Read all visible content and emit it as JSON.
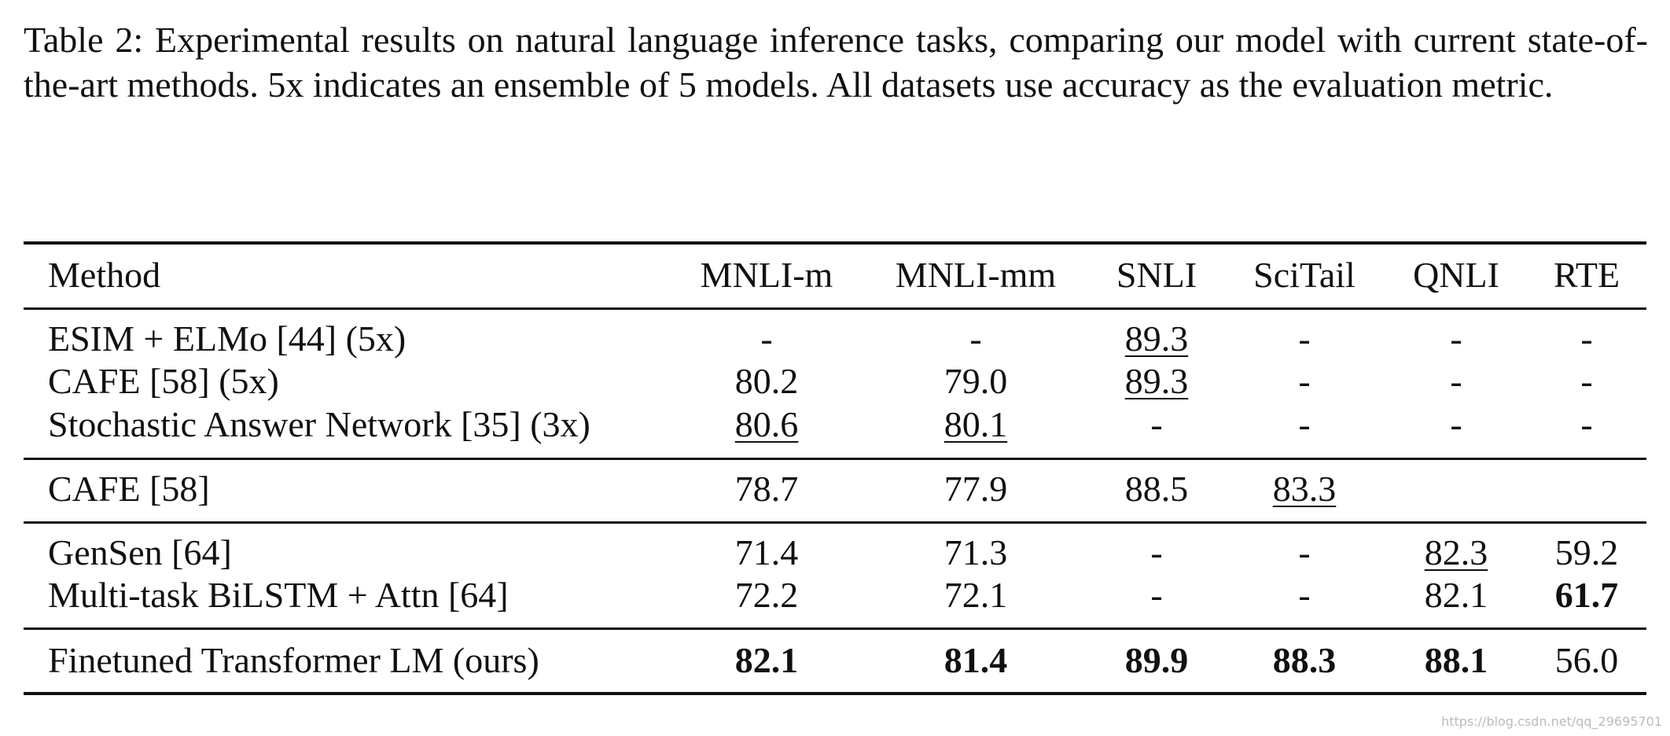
{
  "caption": "Table 2: Experimental results on natural language inference tasks, comparing our model with current state-of-the-art methods. 5x indicates an ensemble of 5 models. All datasets use accuracy as the evaluation metric.",
  "table": {
    "header": [
      "Method",
      "MNLI-m",
      "MNLI-mm",
      "SNLI",
      "SciTail",
      "QNLI",
      "RTE"
    ],
    "groups": [
      [
        [
          "ESIM + ELMo [44] (5x)",
          "-",
          "-",
          "89.3",
          "-",
          "-",
          "-"
        ],
        [
          "CAFE [58] (5x)",
          "80.2",
          "79.0",
          "89.3",
          "-",
          "-",
          "-"
        ],
        [
          "Stochastic Answer Network [35] (3x)",
          "80.6",
          "80.1",
          "-",
          "-",
          "-",
          "-"
        ]
      ],
      [
        [
          "CAFE [58]",
          "78.7",
          "77.9",
          "88.5",
          "83.3"
        ]
      ],
      [
        [
          "GenSen [64]",
          "71.4",
          "71.3",
          "-",
          "-",
          "82.3",
          "59.2"
        ],
        [
          "Multi-task BiLSTM + Attn [64]",
          "72.2",
          "72.1",
          "-",
          "-",
          "82.1",
          "61.7"
        ]
      ],
      [
        [
          "Finetuned Transformer LM (ours)",
          "82.1",
          "81.4",
          "89.9",
          "88.3",
          "88.1",
          "56.0"
        ]
      ]
    ]
  },
  "watermark": "https://blog.csdn.net/qq_29695701"
}
